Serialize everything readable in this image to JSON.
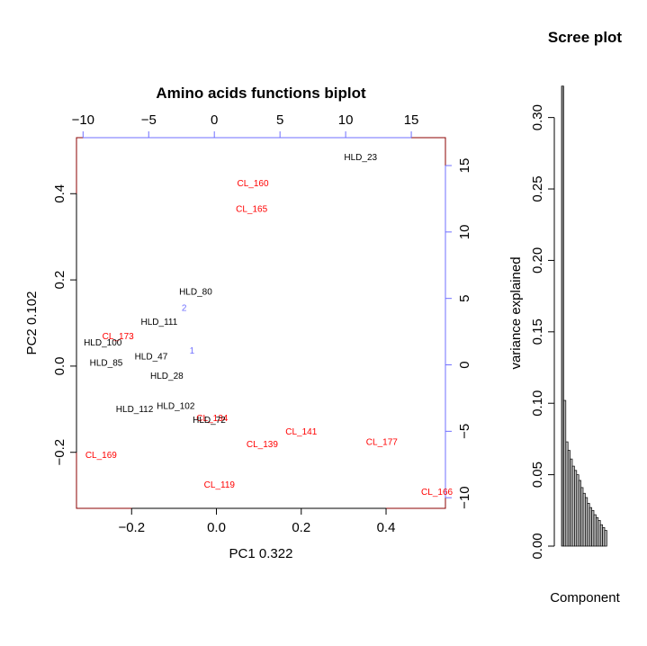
{
  "chart_data": [
    {
      "type": "scatter",
      "title": "Amino acids functions biplot",
      "xlabel": "PC1 0.322",
      "ylabel": "PC2 0.102",
      "xlim": [
        -0.33,
        0.54
      ],
      "ylim": [
        -0.33,
        0.53
      ],
      "xticks": [
        "−0.2",
        "0.0",
        "0.2",
        "0.4"
      ],
      "xtick_values": [
        -0.2,
        0.0,
        0.2,
        0.4
      ],
      "yticks": [
        "−0.2",
        "0.0",
        "0.2",
        "0.4"
      ],
      "ytick_values": [
        -0.2,
        0.0,
        0.2,
        0.4
      ],
      "top_axis": {
        "lim": [
          -10.5,
          17.6
        ],
        "tick_values": [
          -10,
          -5,
          0,
          5,
          10,
          15
        ],
        "ticks": [
          "−10",
          "−5",
          "0",
          "5",
          "10",
          "15"
        ]
      },
      "right_axis": {
        "lim": [
          -10.8,
          17.1
        ],
        "tick_values": [
          -10,
          -5,
          0,
          5,
          10,
          15
        ],
        "ticks": [
          "−10",
          "−5",
          "0",
          "5",
          "10",
          "15"
        ]
      },
      "colors": {
        "HLD": "#000000",
        "CL": "#ff0000",
        "variables": "#6f6fff",
        "frame": "#8b0000"
      },
      "points": [
        {
          "label": "HLD_23",
          "x": 0.34,
          "y": 0.485,
          "group": "HLD"
        },
        {
          "label": "CL_160",
          "x": 0.086,
          "y": 0.425,
          "group": "CL"
        },
        {
          "label": "CL_165",
          "x": 0.083,
          "y": 0.365,
          "group": "CL"
        },
        {
          "label": "HLD_80",
          "x": -0.049,
          "y": 0.173,
          "group": "HLD"
        },
        {
          "label": "HLD_111",
          "x": -0.135,
          "y": 0.103,
          "group": "HLD"
        },
        {
          "label": "CL_173",
          "x": -0.232,
          "y": 0.07,
          "group": "CL"
        },
        {
          "label": "HLD_100",
          "x": -0.268,
          "y": 0.055,
          "group": "HLD"
        },
        {
          "label": "HLD_47",
          "x": -0.154,
          "y": 0.023,
          "group": "HLD"
        },
        {
          "label": "HLD_85",
          "x": -0.26,
          "y": 0.008,
          "group": "HLD"
        },
        {
          "label": "HLD_28",
          "x": -0.117,
          "y": -0.022,
          "group": "HLD"
        },
        {
          "label": "HLD_102",
          "x": -0.096,
          "y": -0.092,
          "group": "HLD"
        },
        {
          "label": "HLD_112",
          "x": -0.193,
          "y": -0.099,
          "group": "HLD"
        },
        {
          "label": "CL_134",
          "x": -0.01,
          "y": -0.12,
          "group": "CL"
        },
        {
          "label": "HLD_72",
          "x": -0.017,
          "y": -0.124,
          "group": "HLD"
        },
        {
          "label": "CL_141",
          "x": 0.2,
          "y": -0.152,
          "group": "CL"
        },
        {
          "label": "CL_177",
          "x": 0.39,
          "y": -0.176,
          "group": "CL"
        },
        {
          "label": "CL_139",
          "x": 0.108,
          "y": -0.181,
          "group": "CL"
        },
        {
          "label": "CL_169",
          "x": -0.272,
          "y": -0.206,
          "group": "CL"
        },
        {
          "label": "CL_119",
          "x": 0.007,
          "y": -0.275,
          "group": "CL"
        },
        {
          "label": "CL_166",
          "x": 0.52,
          "y": -0.291,
          "group": "CL"
        }
      ],
      "variables": [
        {
          "label": "2",
          "x": -2.3,
          "y": 4.3
        },
        {
          "label": "1",
          "x": -1.7,
          "y": 1.1
        }
      ]
    },
    {
      "type": "bar",
      "title": "Scree plot",
      "xlabel": "Component",
      "ylabel": "variance explained",
      "ylim": [
        0,
        0.33
      ],
      "yticks": [
        "0.00",
        "0.05",
        "0.10",
        "0.15",
        "0.20",
        "0.25",
        "0.30"
      ],
      "ytick_values": [
        0.0,
        0.05,
        0.1,
        0.15,
        0.2,
        0.25,
        0.3
      ],
      "values": [
        0.322,
        0.102,
        0.073,
        0.067,
        0.061,
        0.056,
        0.053,
        0.05,
        0.046,
        0.041,
        0.037,
        0.034,
        0.03,
        0.027,
        0.025,
        0.022,
        0.02,
        0.018,
        0.015,
        0.013,
        0.011
      ]
    }
  ]
}
